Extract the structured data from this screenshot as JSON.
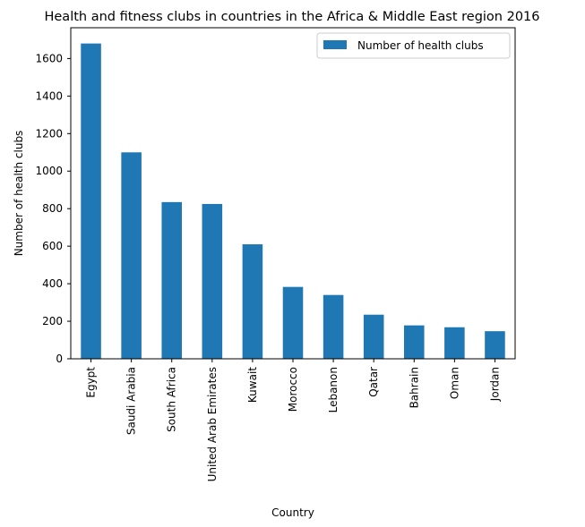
{
  "chart_data": {
    "type": "bar",
    "title": "Health and fitness clubs in countries in the Africa & Middle East region 2016",
    "xlabel": "Country",
    "ylabel": "Number of health clubs",
    "categories": [
      "Egypt",
      "Saudi Arabia",
      "South Africa",
      "United Arab Emirates",
      "Kuwait",
      "Morocco",
      "Lebanon",
      "Qatar",
      "Bahrain",
      "Oman",
      "Jordan"
    ],
    "series": [
      {
        "name": "Number of health clubs",
        "color": "#1f77b4",
        "values": [
          1680,
          1100,
          835,
          825,
          610,
          383,
          340,
          235,
          178,
          168,
          147
        ]
      }
    ],
    "ylim": [
      0,
      1764
    ],
    "yticks": [
      0,
      200,
      400,
      600,
      800,
      1000,
      1200,
      1400,
      1600
    ],
    "grid": false,
    "legend_position": "top-right"
  }
}
